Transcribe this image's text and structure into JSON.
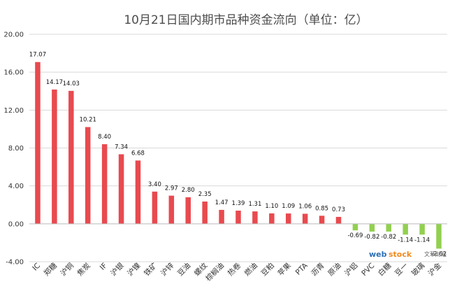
{
  "chart_data": {
    "type": "bar",
    "title": "10月21日国内期市品种资金流向（单位：亿）",
    "categories": [
      "IC",
      "郑糖",
      "沪铜",
      "焦炭",
      "IF",
      "沪银",
      "沪镍",
      "铁矿",
      "沪锌",
      "豆油",
      "螺纹",
      "棕榈油",
      "热卷",
      "燃油",
      "豆粕",
      "苹果",
      "PTA",
      "沥青",
      "原油",
      "沪铝",
      "PVC",
      "白糖",
      "豆一",
      "玻璃",
      "沪金"
    ],
    "values": [
      17.07,
      14.17,
      14.03,
      10.21,
      8.4,
      7.34,
      6.68,
      3.4,
      2.97,
      2.8,
      2.35,
      1.47,
      1.39,
      1.31,
      1.1,
      1.09,
      1.06,
      0.85,
      0.73,
      -0.69,
      -0.82,
      -0.82,
      -1.14,
      -1.14,
      -2.62
    ],
    "value_labels": [
      "17.07",
      "14.17",
      "14.03",
      "10.21",
      "8.40",
      "7.34",
      "6.68",
      "3.40",
      "2.97",
      "2.80",
      "2.35",
      "1.47",
      "1.39",
      "1.31",
      "1.10",
      "1.09",
      "1.06",
      "0.85",
      "0.73",
      "-0.69",
      "-0.82",
      "-0.82",
      "-1.14",
      "-1.14",
      "-2.62"
    ],
    "yticks": [
      "20.00",
      "16.00",
      "12.00",
      "8.00",
      "4.00",
      "0.00",
      "-4.00"
    ],
    "ylim": [
      -4,
      20
    ],
    "grid": true,
    "legend": "none",
    "colors": {
      "positive": "#e84a4f",
      "negative": "#92d050",
      "grid": "#d9d9d9",
      "axis": "#bfbfbf"
    }
  },
  "watermark": {
    "brand_a": "web",
    "brand_b": "stock",
    "tagline": "文華財經"
  }
}
